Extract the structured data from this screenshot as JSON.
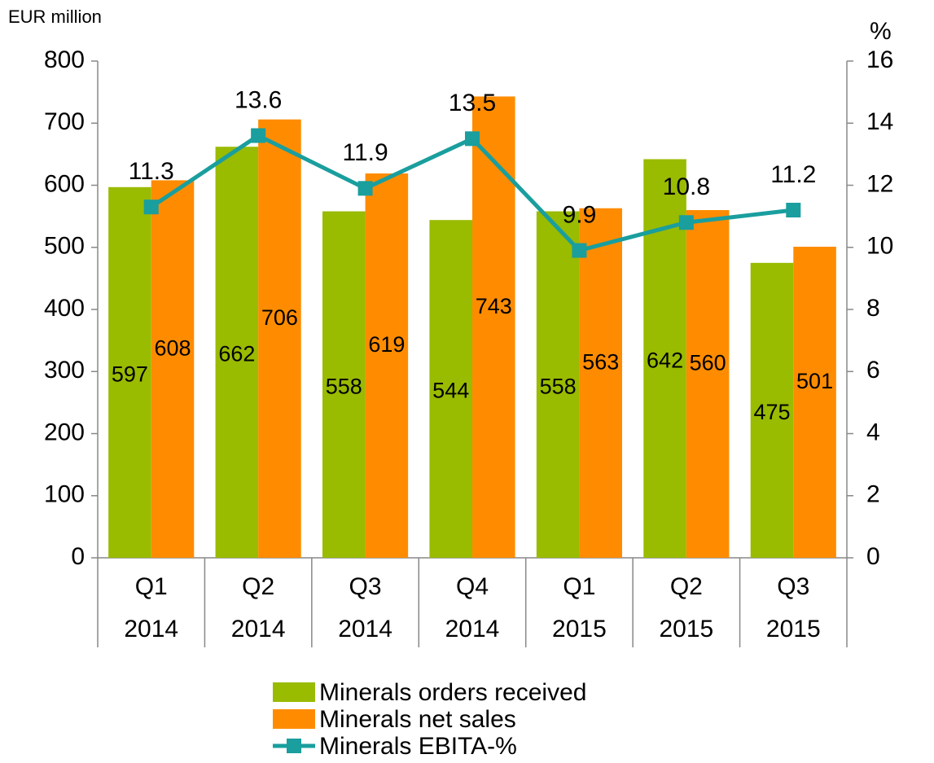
{
  "chart_data": {
    "type": "bar",
    "y_label": "EUR million",
    "y2_label": "%",
    "categories": [
      [
        "Q1",
        "2014"
      ],
      [
        "Q2",
        "2014"
      ],
      [
        "Q3",
        "2014"
      ],
      [
        "Q4",
        "2014"
      ],
      [
        "Q1",
        "2015"
      ],
      [
        "Q2",
        "2015"
      ],
      [
        "Q3",
        "2015"
      ]
    ],
    "series": [
      {
        "name": "Minerals orders received",
        "color": "#99bb00",
        "values": [
          597,
          662,
          558,
          544,
          558,
          642,
          475
        ]
      },
      {
        "name": "Minerals net sales",
        "color": "#ff8c00",
        "values": [
          608,
          706,
          619,
          743,
          563,
          560,
          501
        ]
      },
      {
        "name": "Minerals EBITA-%",
        "type": "line",
        "axis": "y2",
        "color": "#1a9e9e",
        "values": [
          11.3,
          13.6,
          11.9,
          13.5,
          9.9,
          10.8,
          11.2
        ]
      }
    ],
    "ylim": [
      0,
      800
    ],
    "yticks": [
      0,
      100,
      200,
      300,
      400,
      500,
      600,
      700,
      800
    ],
    "y2lim": [
      0,
      16
    ],
    "y2ticks": [
      0,
      2,
      4,
      6,
      8,
      10,
      12,
      14,
      16
    ],
    "legend": "bottom"
  }
}
